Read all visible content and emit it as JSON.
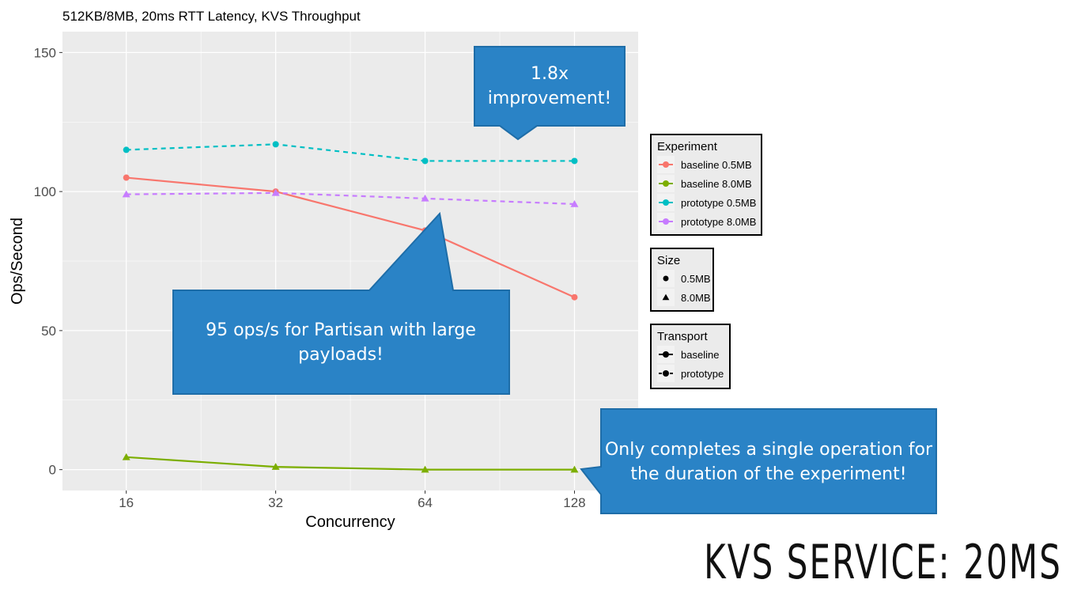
{
  "slide": {
    "title": "KVS SERVICE: 20MS"
  },
  "colors": {
    "panel": "#EBEBEB",
    "grid": "#FFFFFF",
    "callout": "#2A83C6",
    "callout_border": "#1E6DA8"
  },
  "chart_data": {
    "type": "line",
    "title": "512KB/8MB, 20ms RTT Latency, KVS Throughput",
    "xlabel": "Concurrency",
    "ylabel": "Ops/Second",
    "x_scale": "log2",
    "x": [
      16,
      32,
      64,
      128
    ],
    "x_tick_labels": [
      "16",
      "32",
      "64",
      "128"
    ],
    "xlim": [
      11.9,
      172
    ],
    "ylim": [
      -7.5,
      157.5
    ],
    "y_ticks": [
      0,
      50,
      100,
      150
    ],
    "y_tick_labels": [
      "0",
      "50",
      "100",
      "150"
    ],
    "grid": true,
    "series": [
      {
        "name": "baseline 0.5MB",
        "values": [
          105,
          100,
          86,
          62
        ],
        "color": "#F8766D",
        "shape": "circle",
        "dash": "solid"
      },
      {
        "name": "baseline 8.0MB",
        "values": [
          4.5,
          1,
          0,
          0
        ],
        "color": "#7CAE00",
        "shape": "triangle",
        "dash": "solid"
      },
      {
        "name": "prototype 0.5MB",
        "values": [
          115,
          117,
          111,
          111
        ],
        "color": "#00BFC4",
        "shape": "circle",
        "dash": "dashed"
      },
      {
        "name": "prototype 8.0MB",
        "values": [
          99,
          99.5,
          97.5,
          95.5
        ],
        "color": "#C77CFF",
        "shape": "triangle",
        "dash": "dashed"
      }
    ],
    "legends": [
      {
        "title": "Experiment",
        "entries": [
          "baseline 0.5MB",
          "baseline 8.0MB",
          "prototype 0.5MB",
          "prototype 8.0MB"
        ]
      },
      {
        "title": "Size",
        "entries": [
          "0.5MB",
          "8.0MB"
        ]
      },
      {
        "title": "Transport",
        "entries": [
          "baseline",
          "prototype"
        ]
      }
    ],
    "legend_position": "right",
    "annotations": [
      {
        "lines": [
          "1.8x",
          "improvement!"
        ]
      },
      {
        "lines": [
          "95 ops/s for Partisan with large",
          "payloads!"
        ]
      },
      {
        "lines": [
          "Only completes a single operation for",
          "the duration of the experiment!"
        ]
      }
    ]
  }
}
